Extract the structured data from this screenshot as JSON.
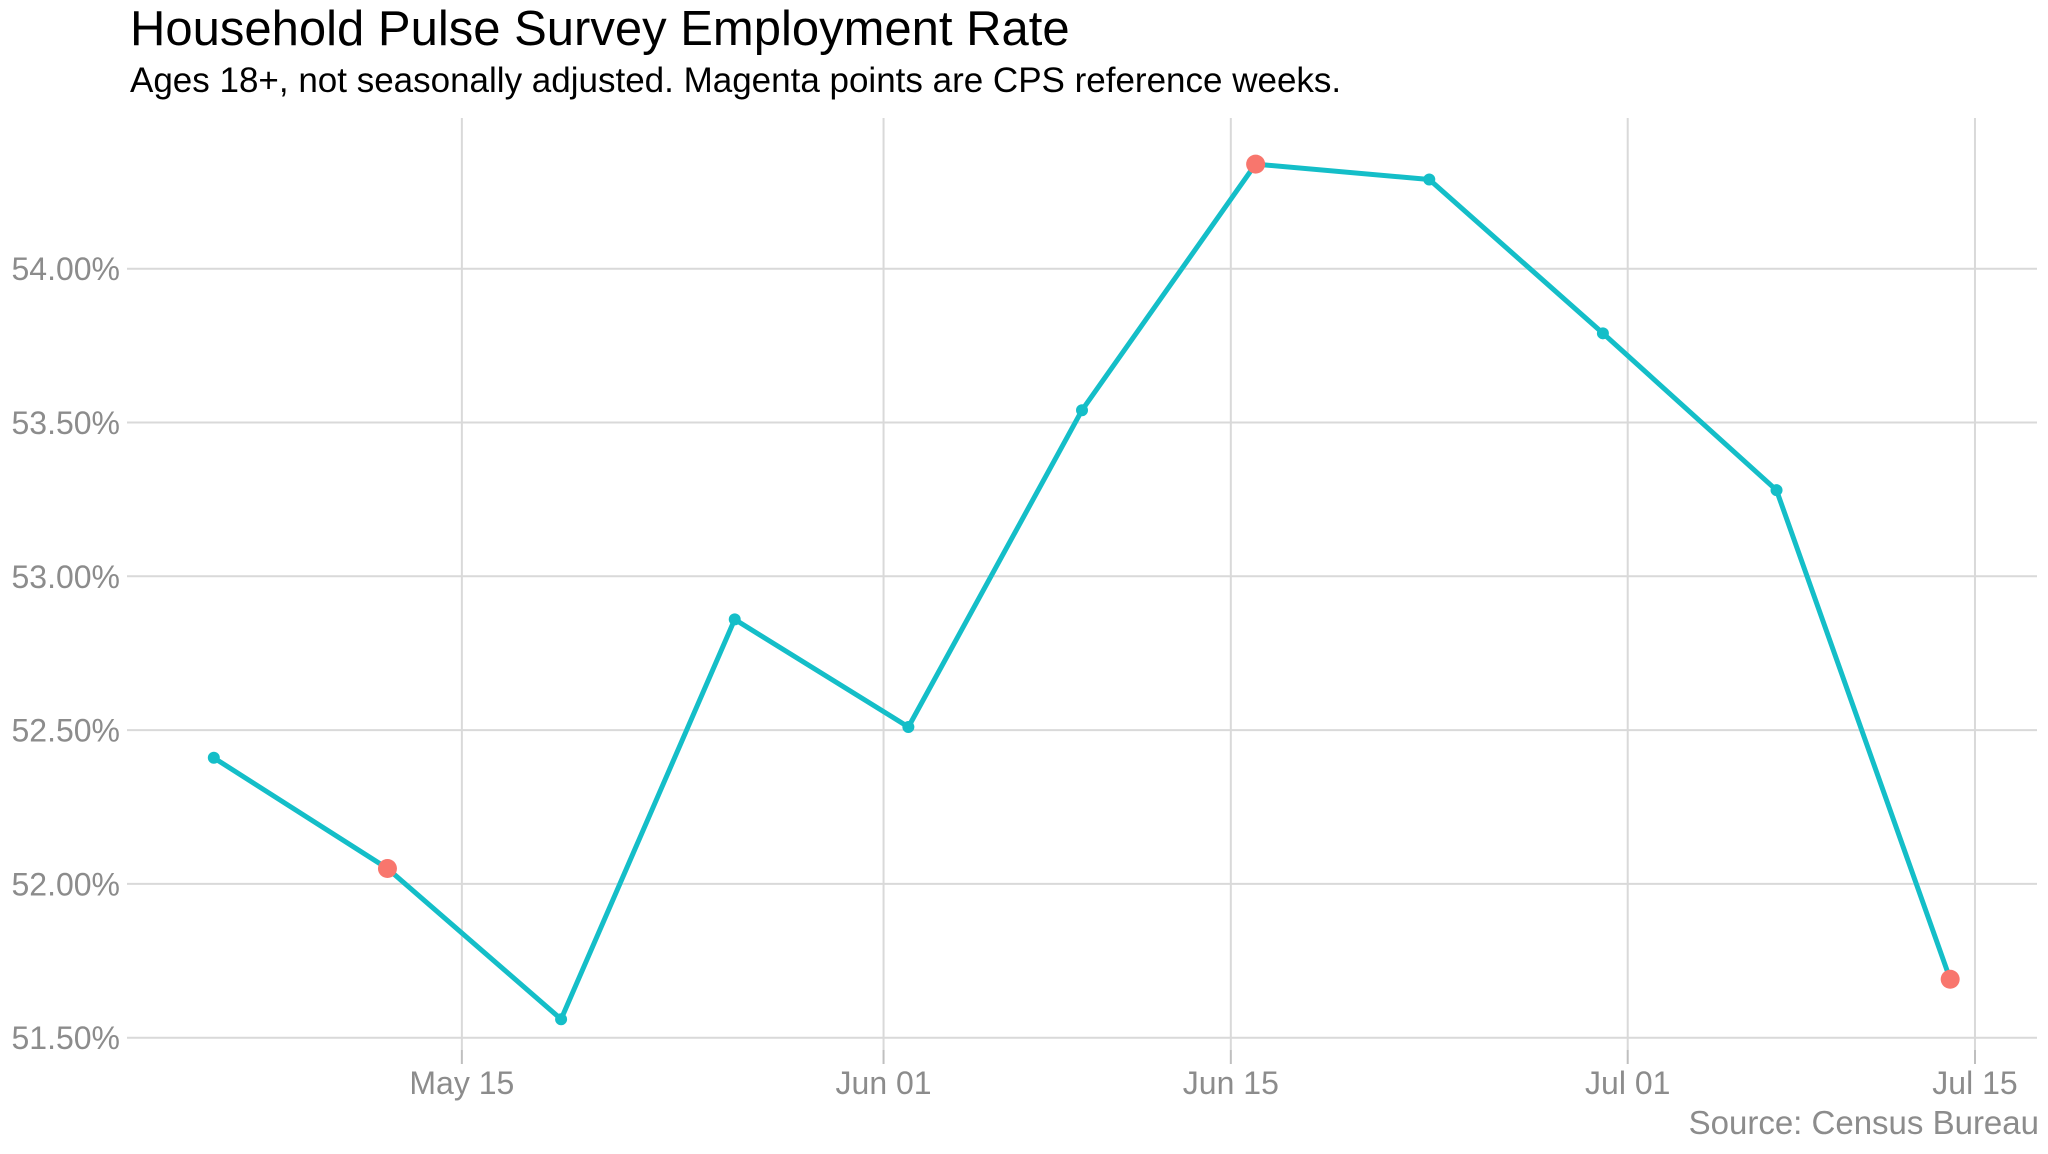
{
  "chart_data": {
    "type": "line",
    "title": "Household Pulse Survey Employment Rate",
    "subtitle": "Ages 18+, not seasonally adjusted. Magenta points are CPS reference weeks.",
    "source": "Source: Census Bureau",
    "xlabel": "",
    "ylabel": "",
    "grid": true,
    "legend": "none",
    "colors": {
      "line": "#14BEC8",
      "point": "#14BEC8",
      "cps_point": "#F8766D",
      "gridline": "#D9D9D9",
      "tick_mark": "#BFBFBF",
      "axis_text": "#8C8C8C",
      "title_text": "#000000",
      "background": "#FFFFFF"
    },
    "x_domain_days": [
      -3.5,
      73.5
    ],
    "y_domain": [
      51.46,
      54.49
    ],
    "x_ticks": [
      {
        "label": "May 15",
        "day": 10
      },
      {
        "label": "Jun 01",
        "day": 27
      },
      {
        "label": "Jun 15",
        "day": 41
      },
      {
        "label": "Jul 01",
        "day": 57
      },
      {
        "label": "Jul 15",
        "day": 71
      }
    ],
    "y_ticks": [
      {
        "label": "51.50%",
        "value": 51.5
      },
      {
        "label": "52.00%",
        "value": 52.0
      },
      {
        "label": "52.50%",
        "value": 52.5
      },
      {
        "label": "53.00%",
        "value": 53.0
      },
      {
        "label": "53.50%",
        "value": 53.5
      },
      {
        "label": "54.00%",
        "value": 54.0
      }
    ],
    "series": [
      {
        "name": "HPS employment rate",
        "points": [
          {
            "date": "May 05",
            "day": 0,
            "value": 52.41,
            "cps_reference_week": false
          },
          {
            "date": "May 12",
            "day": 7,
            "value": 52.05,
            "cps_reference_week": true
          },
          {
            "date": "May 19",
            "day": 14,
            "value": 51.56,
            "cps_reference_week": false
          },
          {
            "date": "May 26",
            "day": 21,
            "value": 52.86,
            "cps_reference_week": false
          },
          {
            "date": "Jun 02",
            "day": 28,
            "value": 52.51,
            "cps_reference_week": false
          },
          {
            "date": "Jun 09",
            "day": 35,
            "value": 53.54,
            "cps_reference_week": false
          },
          {
            "date": "Jun 16",
            "day": 42,
            "value": 54.34,
            "cps_reference_week": true
          },
          {
            "date": "Jun 23",
            "day": 49,
            "value": 54.29,
            "cps_reference_week": false
          },
          {
            "date": "Jun 30",
            "day": 56,
            "value": 53.79,
            "cps_reference_week": false
          },
          {
            "date": "Jul 07",
            "day": 63,
            "value": 53.28,
            "cps_reference_week": false
          },
          {
            "date": "Jul 14",
            "day": 70,
            "value": 51.69,
            "cps_reference_week": true
          }
        ]
      }
    ]
  }
}
